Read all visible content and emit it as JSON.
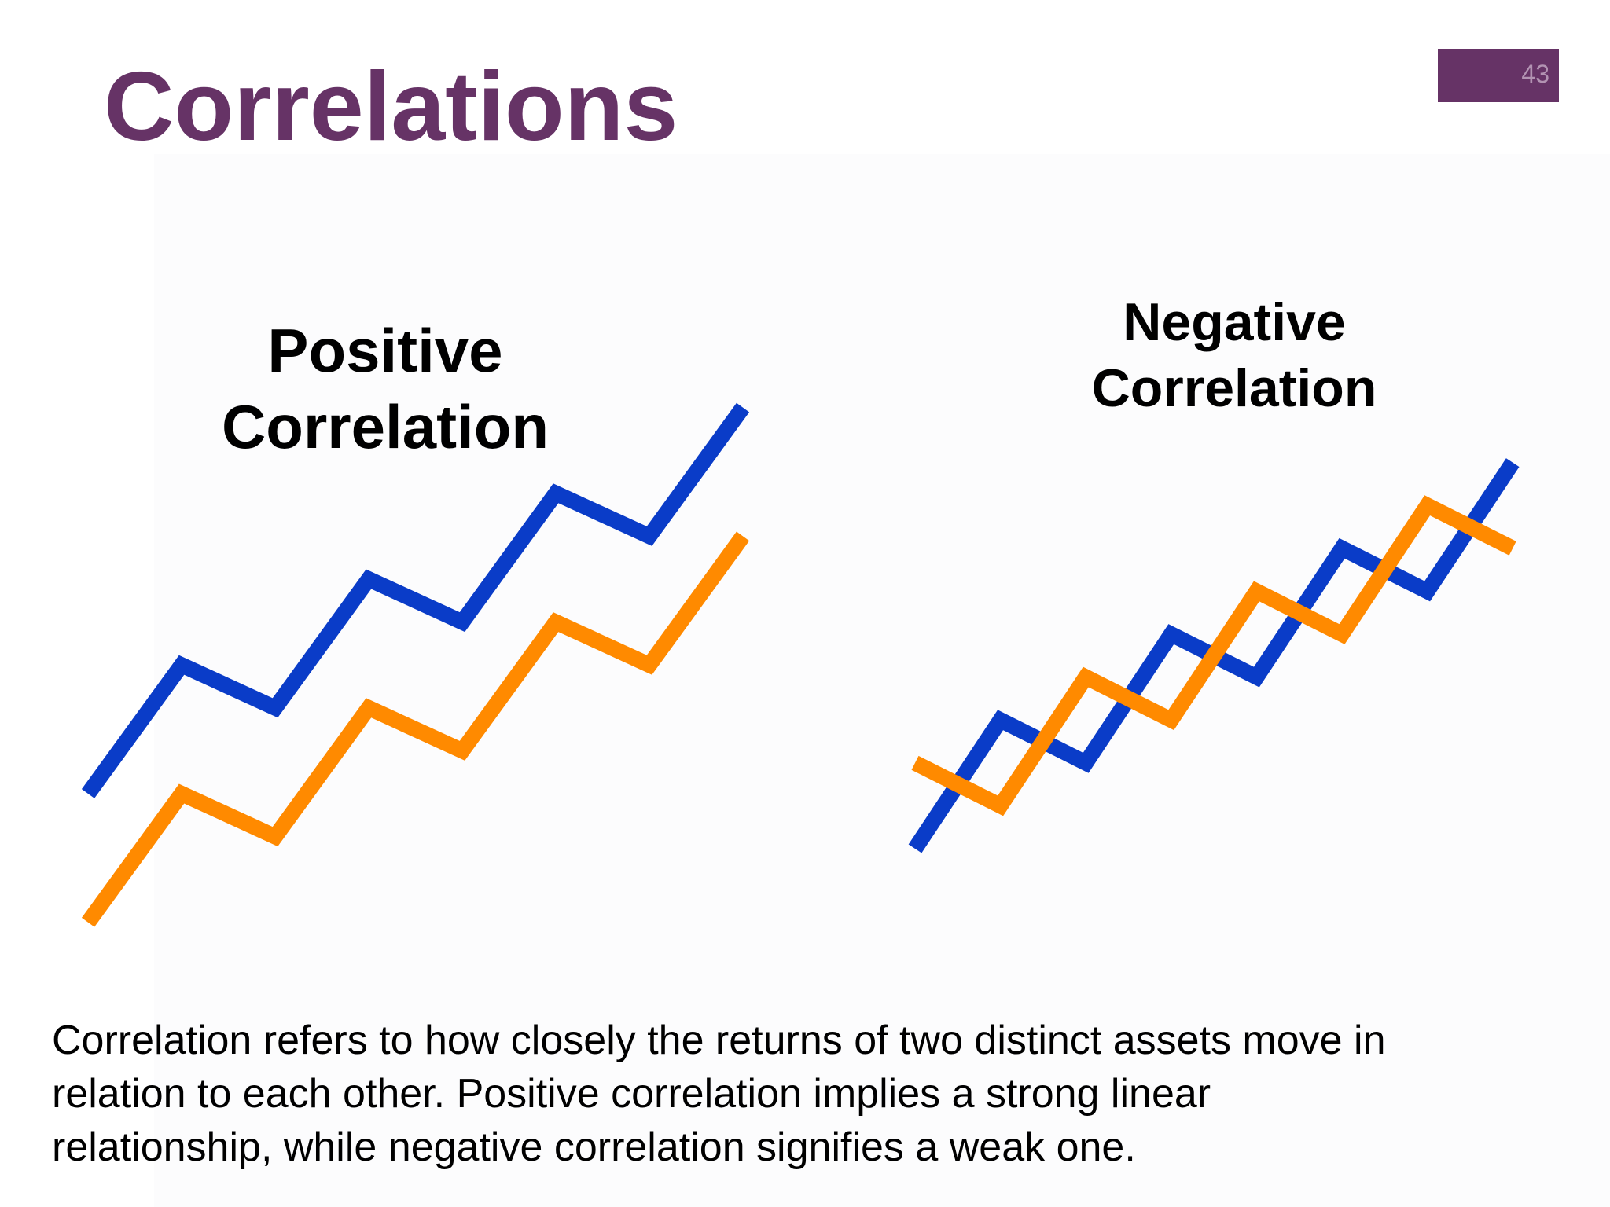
{
  "slide": {
    "title": "Correlations",
    "page_number": "43"
  },
  "colors": {
    "title": "#663366",
    "badge": "#663366",
    "line_blue": "#0a3cc8",
    "line_orange": "#ff8a00"
  },
  "positive": {
    "heading_line1": "Positive",
    "heading_line2": "Correlation",
    "series": [
      {
        "color": "line_blue",
        "values": [
          0,
          3,
          2,
          5,
          4,
          7,
          6,
          9
        ]
      },
      {
        "color": "line_orange",
        "values": [
          -3,
          0,
          -1,
          2,
          1,
          4,
          3,
          6
        ]
      }
    ]
  },
  "negative": {
    "heading_line1": "Negative",
    "heading_line2": "Correlation",
    "series": [
      {
        "color": "line_blue",
        "values": [
          0,
          3,
          2,
          5,
          4,
          7,
          6,
          9
        ]
      },
      {
        "color": "line_orange",
        "values": [
          2,
          1,
          4,
          3,
          6,
          5,
          8,
          7
        ]
      }
    ]
  },
  "body": {
    "line1": "Correlation refers to how closely the returns of two distinct assets move in",
    "line2": "relation to each other.  Positive correlation implies a strong linear",
    "line3": "relationship, while negative correlation signifies a weak one."
  }
}
